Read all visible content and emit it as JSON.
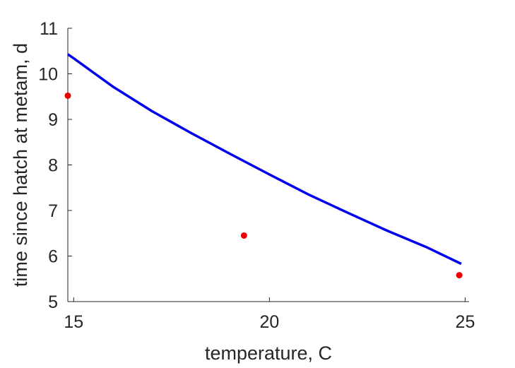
{
  "chart_data": {
    "type": "scatter",
    "xlabel": "temperature, C",
    "ylabel": "time since hatch at metam, d",
    "xlim": [
      14.85,
      25.1
    ],
    "ylim": [
      5,
      11
    ],
    "xticks": [
      15,
      20,
      25
    ],
    "yticks": [
      5,
      6,
      7,
      8,
      9,
      10,
      11
    ],
    "grid": false,
    "series": [
      {
        "kind": "line",
        "color": "#0000ee",
        "x": [
          14.85,
          15,
          16,
          17,
          18,
          19,
          20,
          21,
          22,
          23,
          24,
          24.9
        ],
        "y": [
          10.43,
          10.34,
          9.72,
          9.18,
          8.7,
          8.24,
          7.79,
          7.35,
          6.95,
          6.56,
          6.2,
          5.83
        ]
      },
      {
        "kind": "scatter",
        "color": "#ee0000",
        "x": [
          14.85,
          19.35,
          24.85
        ],
        "y": [
          9.52,
          6.45,
          5.58
        ]
      }
    ]
  }
}
